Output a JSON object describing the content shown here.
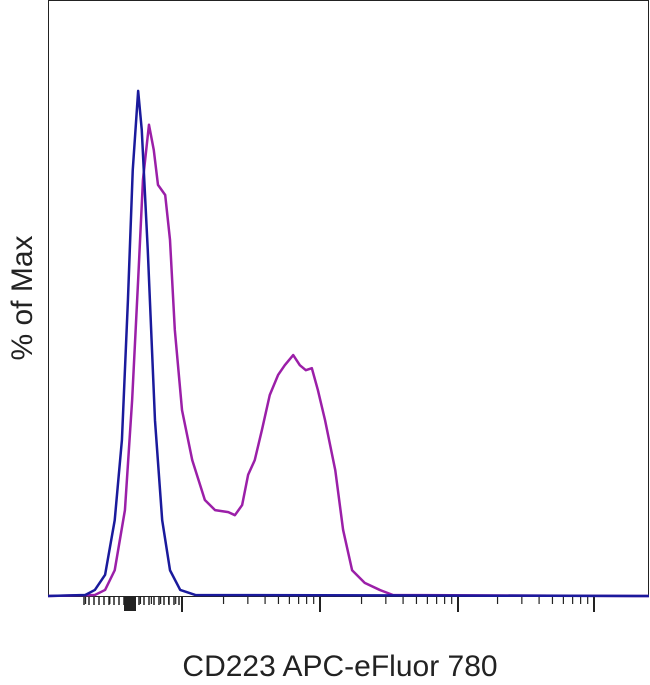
{
  "chart_data": {
    "type": "line",
    "x_label": "CD223 APC-eFluor 780",
    "y_label": "% of Max",
    "xlim": [
      0,
      100
    ],
    "ylim": [
      0,
      118
    ],
    "series": [
      {
        "color": "#9b1fa8",
        "x": [
          0,
          7.8,
          9.5,
          11.1,
          12.8,
          14.0,
          15.0,
          15.8,
          16.8,
          17.6,
          18.3,
          19.5,
          20.3,
          21.1,
          22.3,
          24.0,
          26.1,
          27.8,
          30.0,
          31.1,
          32.3,
          33.3,
          34.4,
          35.6,
          36.9,
          38.3,
          39.4,
          40.8,
          41.9,
          42.9,
          43.9,
          44.9,
          46.1,
          47.8,
          49.1,
          50.6,
          52.7,
          55.2,
          57.4,
          100
        ],
        "values": [
          0,
          0.2,
          1.2,
          5.1,
          17.0,
          38.8,
          62.6,
          82.4,
          93.3,
          88.3,
          81.4,
          79.4,
          70.5,
          52.7,
          36.8,
          26.9,
          19.0,
          17.0,
          16.6,
          16.0,
          18.0,
          24.0,
          26.9,
          32.9,
          39.8,
          43.8,
          45.7,
          47.7,
          45.7,
          44.7,
          45.1,
          40.8,
          34.8,
          24.9,
          13.1,
          5.1,
          2.6,
          1.2,
          0.2,
          0
        ]
      },
      {
        "color": "#1a1a9c",
        "x": [
          0,
          6.2,
          7.8,
          9.5,
          11.1,
          12.3,
          13.3,
          14.1,
          15.0,
          15.6,
          16.6,
          17.8,
          19.0,
          20.3,
          22.0,
          24.5,
          100
        ],
        "values": [
          0,
          0.2,
          1.2,
          4.2,
          15.0,
          30.9,
          58.6,
          84.3,
          100,
          92.3,
          68.5,
          34.8,
          15.0,
          5.1,
          1.2,
          0.2,
          0
        ]
      }
    ]
  }
}
